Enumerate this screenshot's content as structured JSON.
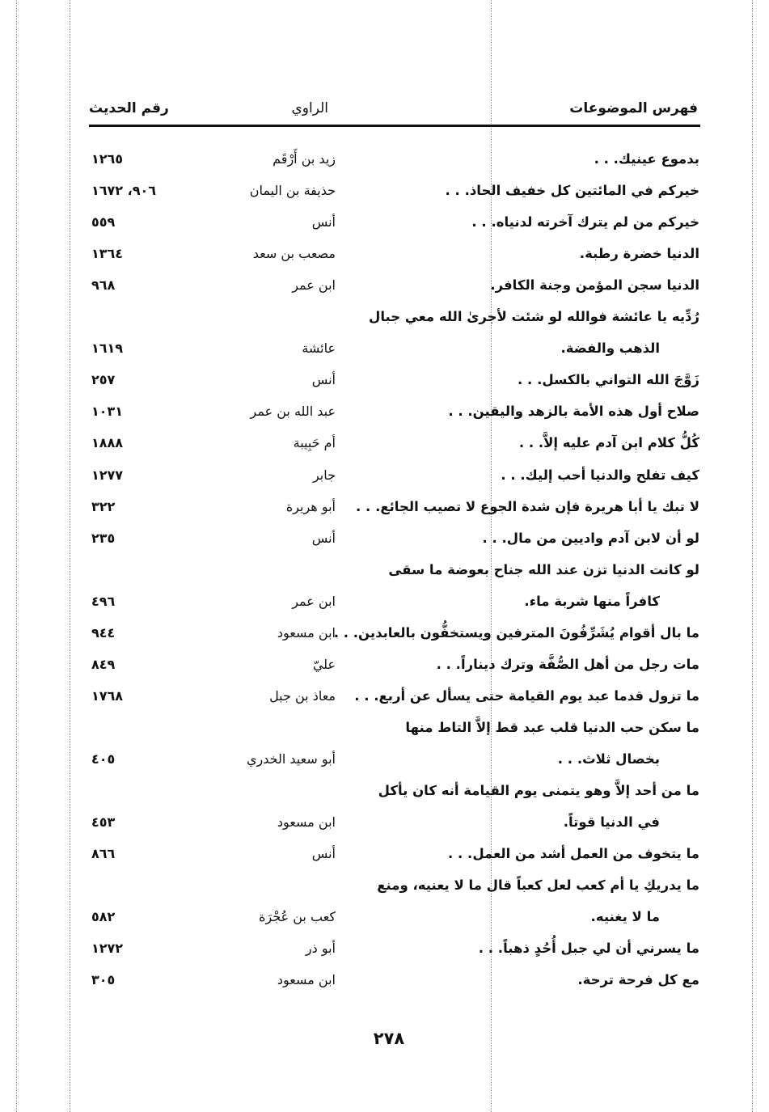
{
  "header": {
    "topics": "فهرس الموضوعات",
    "narrator": "الراوي",
    "hadith_number": "رقم الحديث"
  },
  "rows": [
    {
      "topic": "بدموع عينيك. . .",
      "narrator": "زيد بن أَرْقَم",
      "number": "١٢٦٥"
    },
    {
      "topic": "خيركم في المائتين كل خفيف الحاذ. . .",
      "narrator": "حذيفة بن اليمان",
      "number": "٩٠٦، ١٦٧٢"
    },
    {
      "topic": "خيركم من لم يترك آخرته لدنياه. . .",
      "narrator": "أنس",
      "number": "٥٥٩"
    },
    {
      "topic": "الدنيا خضرة رطبة.",
      "narrator": "مصعب بن سعد",
      "number": "١٣٦٤"
    },
    {
      "topic": "الدنيا سجن المؤمن وجنة الكافر.",
      "narrator": "ابن عمر",
      "number": "٩٦٨"
    },
    {
      "topic": "رُدِّيه يا عائشة فوالله لو شئت لأجرىٰ الله معي جبال",
      "narrator": "",
      "number": ""
    },
    {
      "topic": "الذهب والفضة.",
      "narrator": "عائشة",
      "number": "١٦١٩",
      "indent": true
    },
    {
      "topic": "زَوَّجَ الله التواني بالكسل. . .",
      "narrator": "أنس",
      "number": "٢٥٧"
    },
    {
      "topic": "صلاح أول هذه الأمة بالزهد واليقين. . .",
      "narrator": "عبد الله بن عمر",
      "number": "١٠٣١"
    },
    {
      "topic": "كُلُّ كلام ابن آدم عليه إلاَّ. . .",
      "narrator": "أم حَبِيبة",
      "number": "١٨٨٨"
    },
    {
      "topic": "كيف تفلح والدنيا أحب إليك. . .",
      "narrator": "جابر",
      "number": "١٢٧٧"
    },
    {
      "topic": "لا تبك يا أبا هريرة فإن شدة الجوع لا تصيب الجائع. . .",
      "narrator": "أبو هريرة",
      "number": "٣٢٢"
    },
    {
      "topic": "لو أن لابن آدم واديين من مال. . .",
      "narrator": "أنس",
      "number": "٢٣٥"
    },
    {
      "topic": "لو كانت الدنيا تزن عند الله جناح بعوضة ما سقى",
      "narrator": "",
      "number": ""
    },
    {
      "topic": "كافراً منها شربة ماء.",
      "narrator": "ابن عمر",
      "number": "٤٩٦",
      "indent": true
    },
    {
      "topic": "ما بال أقوام يُشَرِّفُونَ المترفين ويستخفُّون بالعابدين. . .",
      "narrator": "ابن مسعود",
      "number": "٩٤٤"
    },
    {
      "topic": "مات رجل من أهل الصُّفَّة وترك ديناراً. . .",
      "narrator": "عليّ",
      "number": "٨٤٩"
    },
    {
      "topic": "ما تزول قدما عبد يوم القيامة حتى يسأل عن أربع. . .",
      "narrator": "معاذ بن جبل",
      "number": "١٧٦٨"
    },
    {
      "topic": "ما سكن حب الدنيا قلب عبد قط إلاَّ التاط منها",
      "narrator": "",
      "number": ""
    },
    {
      "topic": "بخصال ثلاث. . .",
      "narrator": "أبو سعيد الخدري",
      "number": "٤٠٥",
      "indent": true
    },
    {
      "topic": "ما من أحد إلاَّ وهو يتمنى يوم القيامة أنه كان يأكل",
      "narrator": "",
      "number": ""
    },
    {
      "topic": "في الدنيا قوتاً.",
      "narrator": "ابن مسعود",
      "number": "٤٥٣",
      "indent": true
    },
    {
      "topic": "ما يتخوف من العمل أشد من العمل. . .",
      "narrator": "أنس",
      "number": "٨٦٦"
    },
    {
      "topic": "ما يدريكِ يا أم كعب لعل كعباً قال ما لا يعنيه، ومنع",
      "narrator": "",
      "number": ""
    },
    {
      "topic": "ما لا يغنيه.",
      "narrator": "كعب بن عُجْرَة",
      "number": "٥٨٢",
      "indent": true
    },
    {
      "topic": "ما يسرني أن لي جبل أُحُدٍ ذهباً. . .",
      "narrator": "أبو ذر",
      "number": "١٢٧٢"
    },
    {
      "topic": "مع كل فرحة ترحة.",
      "narrator": "ابن مسعود",
      "number": "٣٠٥"
    }
  ],
  "page_number": "٢٧٨"
}
